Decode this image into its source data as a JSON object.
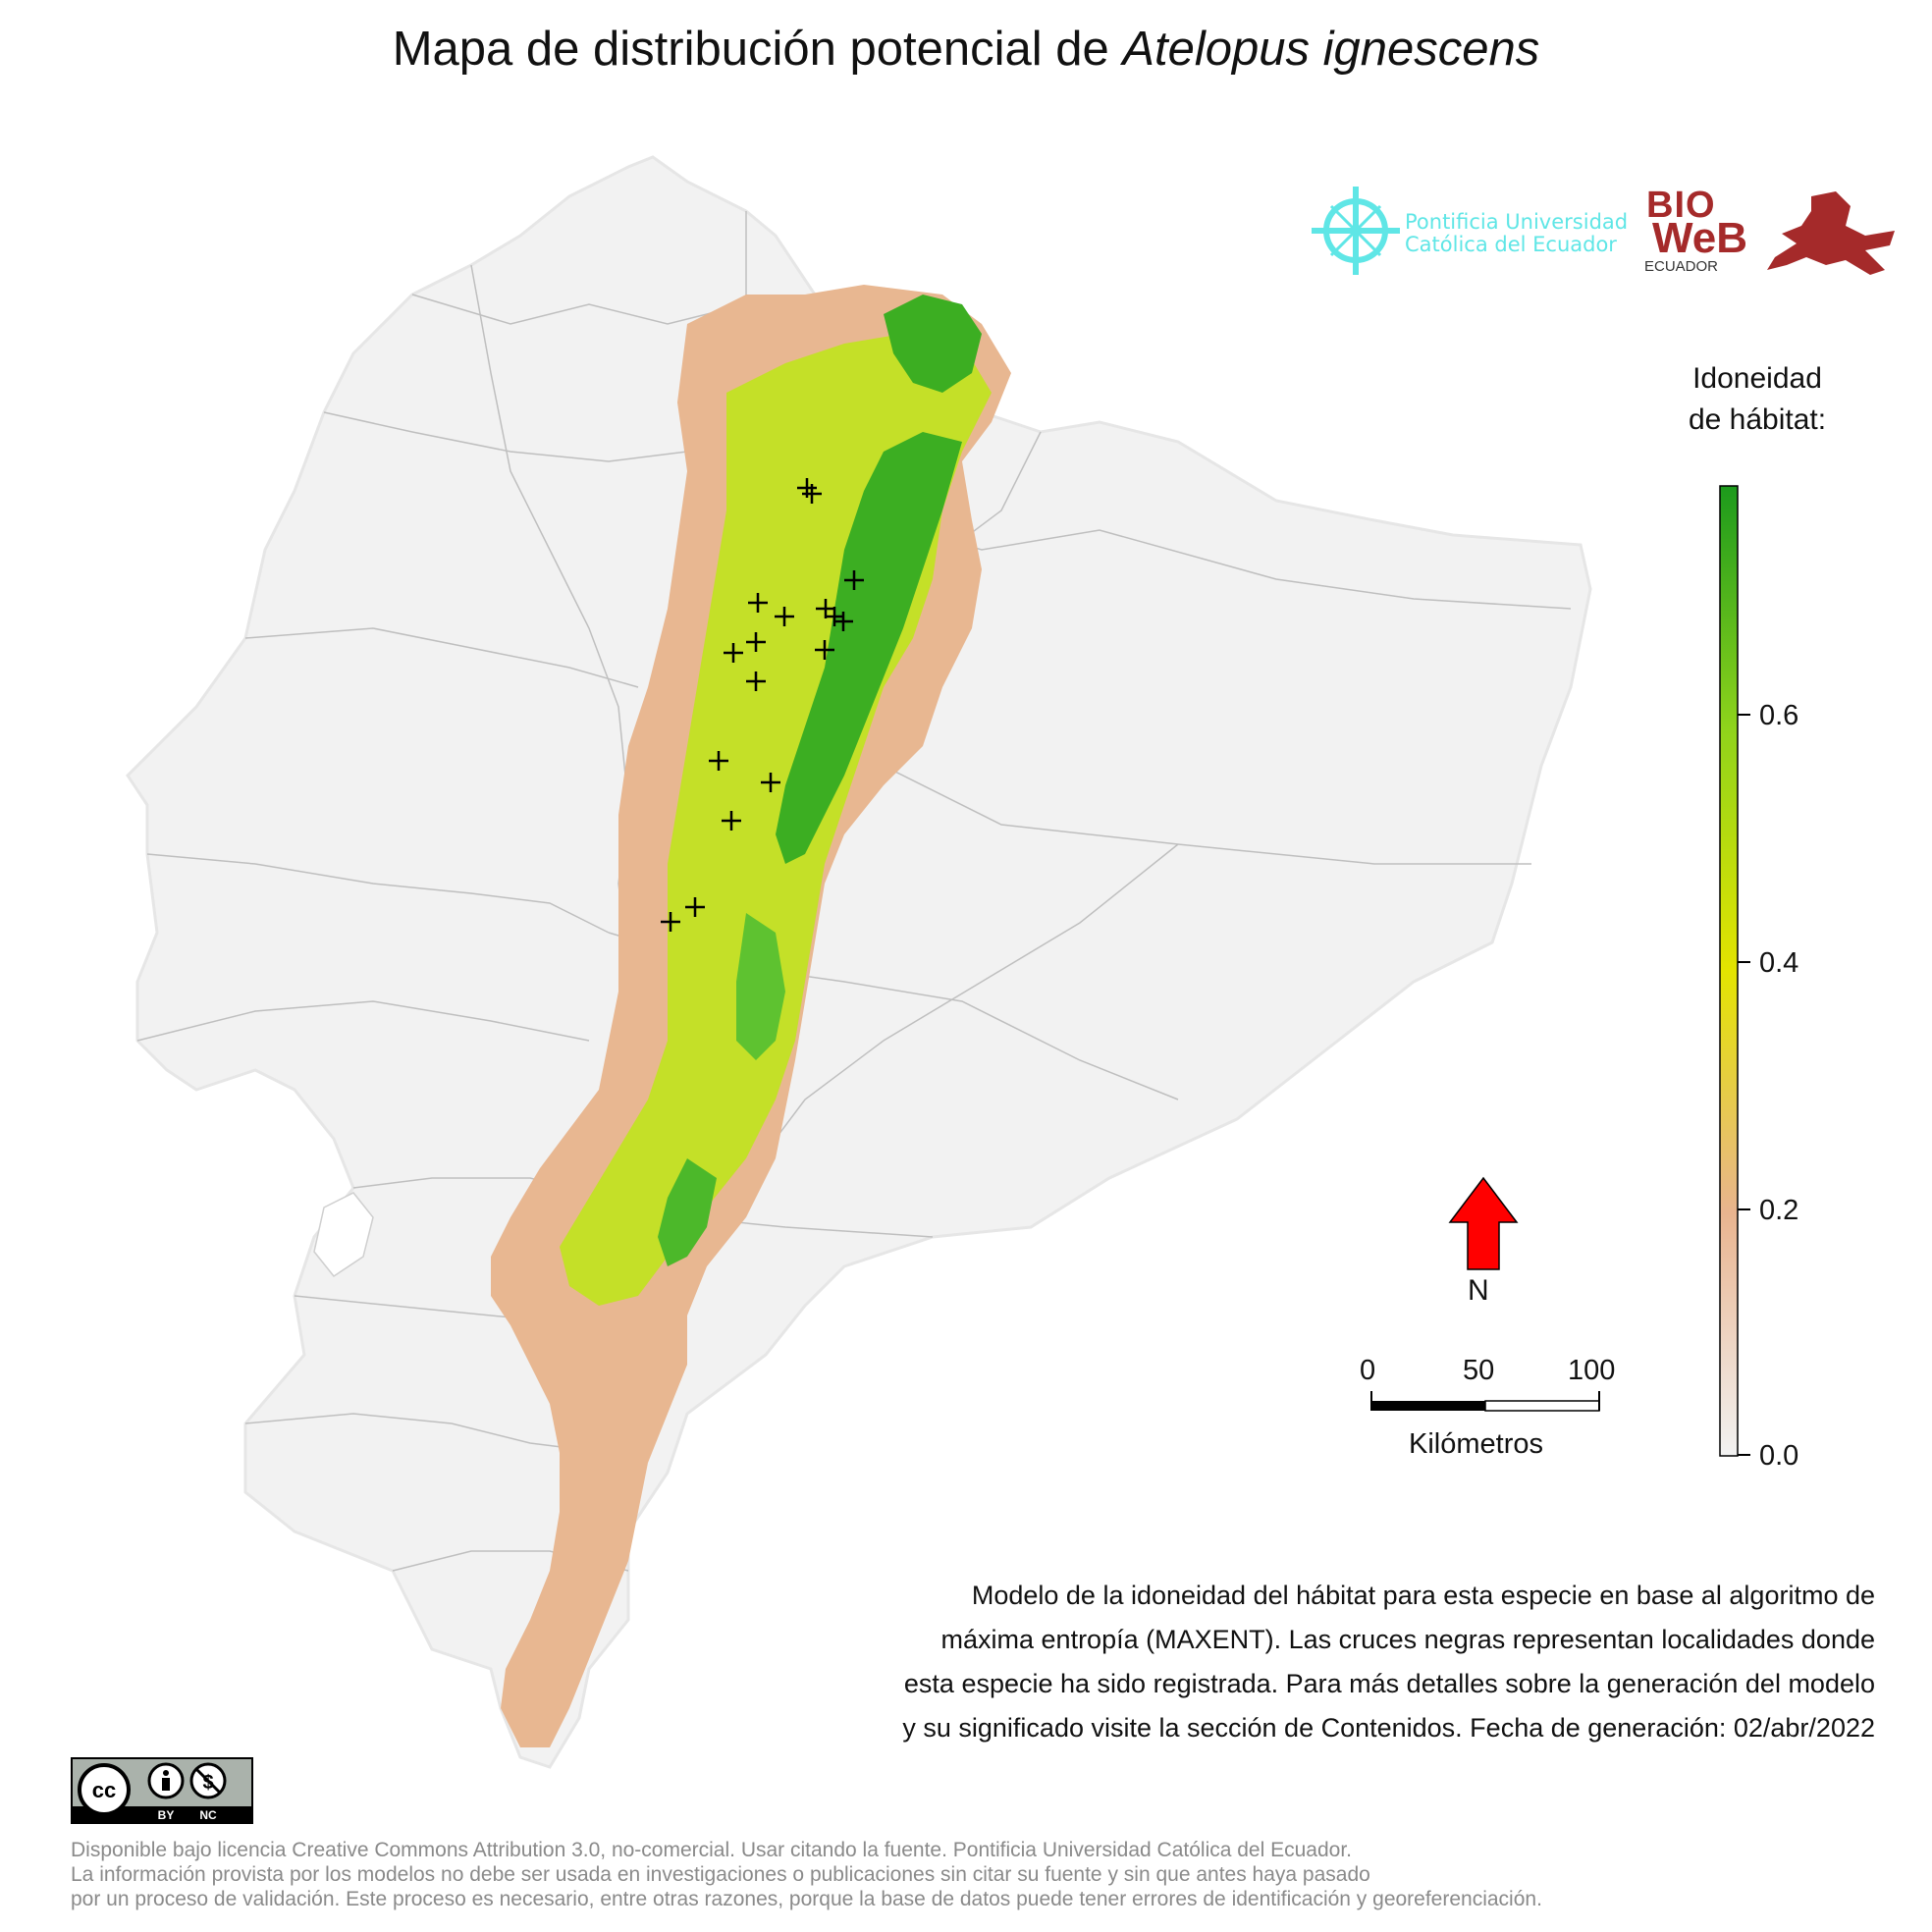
{
  "title": {
    "prefix": "Mapa de distribución potencial de ",
    "species": "Atelopus ignescens"
  },
  "logos": {
    "puce_line1": "Pontificia Universidad",
    "puce_line2": "Católica del Ecuador",
    "bio": "BIO",
    "web": "WeB",
    "ecuador": "ECUADOR"
  },
  "legend": {
    "title_line1": "Idoneidad",
    "title_line2": "de hábitat:",
    "ticks": [
      "0.0",
      "0.2",
      "0.4",
      "0.6"
    ],
    "colors": [
      "#f2f2f2",
      "#e9b48f",
      "#e4e400",
      "#8fd31b",
      "#1c9a1c"
    ]
  },
  "north_arrow": {
    "label": "N",
    "color": "#ff0000"
  },
  "scale_bar": {
    "labels": [
      "0",
      "50",
      "100"
    ],
    "unit": "Kilómetros"
  },
  "caption": [
    "Modelo de la idoneidad del hábitat para esta especie en base al algoritmo de",
    "máxima entropía (MAXENT). Las cruces negras representan localidades donde",
    "esta especie ha sido registrada. Para más detalles sobre la generación del modelo",
    "y su significado visite la sección de Contenidos. Fecha de generación: 02/abr/2022"
  ],
  "cc_badge": {
    "cc": "cc",
    "by": "BY",
    "nc": "NC"
  },
  "license": [
    "Disponible bajo licencia Creative Commons Attribution 3.0, no-comercial. Usar citando la fuente. Pontificia Universidad Católica del Ecuador.",
    "La información provista por los modelos no debe ser usada en investigaciones o publicaciones sin citar su fuente y sin que antes haya pasado",
    "por un proceso de validación. Este proceso es necesario, entre otras razones, porque la base de datos puede tener errores de identificación y georeferenciación."
  ]
}
